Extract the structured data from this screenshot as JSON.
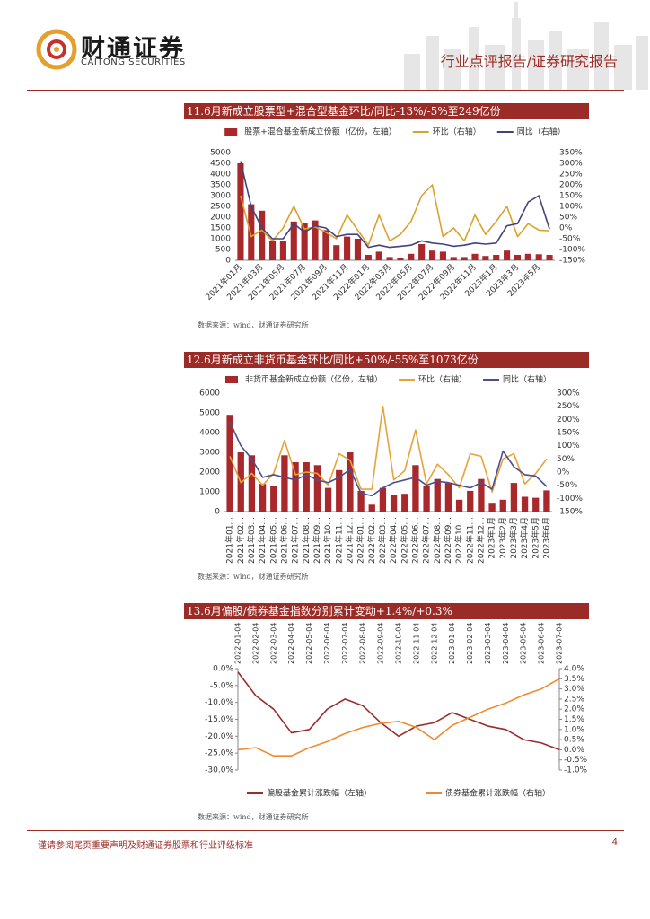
{
  "header": {
    "company": "财通证券",
    "company_en": "CAITONG SECURITIES",
    "report_type": "行业点评报告/证券研究报告"
  },
  "chart_data": [
    {
      "type": "combo",
      "title": "11.6月新成立股票型+混合型基金环比/同比-13%/-5%至249亿份",
      "source": "数据来源：wind，财通证券研究所",
      "legend": "top",
      "categories": [
        "2021年01月",
        null,
        "2021年03月",
        null,
        "2021年05月",
        null,
        "2021年07月",
        null,
        "2021年09月",
        null,
        "2021年11月",
        null,
        "2022年01月",
        null,
        "2022年03月",
        null,
        "2022年05月",
        null,
        "2022年07月",
        null,
        "2022年09月",
        null,
        "2022年11月",
        null,
        "2023年1月",
        null,
        "2023年3月",
        null,
        "2023年5月",
        null
      ],
      "series": [
        {
          "name": "股票+混合基金新成立份额（亿份，左轴）",
          "color": "#a8282b",
          "values": [
            4500,
            2600,
            2300,
            900,
            900,
            1800,
            1750,
            1850,
            1400,
            700,
            1100,
            1000,
            250,
            400,
            150,
            100,
            300,
            750,
            450,
            400,
            150,
            150,
            300,
            200,
            250,
            450,
            250,
            300,
            280,
            249
          ]
        },
        {
          "name": "环比（右轴）",
          "color": "#d9a230",
          "axis": "y2",
          "values": [
            150,
            -40,
            -10,
            -60,
            0,
            100,
            -5,
            5,
            -20,
            -50,
            60,
            -10,
            -80,
            60,
            -60,
            -30,
            30,
            150,
            200,
            -40,
            0,
            -60,
            60,
            -30,
            30,
            100,
            -40,
            20,
            -10,
            -13
          ]
        },
        {
          "name": "同比（右轴）",
          "color": "#3f437e",
          "axis": "y2",
          "values": [
            310,
            100,
            0,
            -50,
            -50,
            20,
            -20,
            10,
            0,
            -40,
            -30,
            -30,
            -90,
            -80,
            -90,
            -85,
            -80,
            -60,
            -70,
            -75,
            -85,
            -80,
            -70,
            -75,
            -70,
            10,
            20,
            120,
            150,
            -5
          ]
        }
      ],
      "ylim": [
        0,
        5000
      ],
      "yticks": [
        0,
        500,
        1000,
        1500,
        2000,
        2500,
        3000,
        3500,
        4000,
        4500,
        5000
      ],
      "y2lim": [
        -150,
        350
      ],
      "y2ticks": [
        {
          "value": -150,
          "label": "-150%"
        },
        {
          "value": -100,
          "label": "-100%"
        },
        {
          "value": -50,
          "label": "-50%"
        },
        {
          "value": 0,
          "label": "0%"
        },
        {
          "value": 50,
          "label": "50%"
        },
        {
          "value": 100,
          "label": "100%"
        },
        {
          "value": 150,
          "label": "150%"
        },
        {
          "value": 200,
          "label": "200%"
        },
        {
          "value": 250,
          "label": "250%"
        },
        {
          "value": 300,
          "label": "300%"
        },
        {
          "value": 350,
          "label": "350%"
        }
      ]
    },
    {
      "type": "combo",
      "title": "12.6月新成立非货币基金环比/同比+50%/-55%至1073亿份",
      "source": "数据来源：wind，财通证券研究所",
      "legend": "top",
      "categories": [
        "2021年01...",
        "2021年02...",
        "2021年03...",
        "2021年04...",
        "2021年05...",
        "2021年06...",
        "2021年07...",
        "2021年08...",
        "2021年09...",
        "2021年10...",
        "2021年11...",
        "2021年12...",
        "2022年01...",
        "2022年02...",
        "2022年03...",
        "2022年04...",
        "2022年05...",
        "2022年06...",
        "2022年07...",
        "2022年08...",
        "2022年09...",
        "2022年10...",
        "2022年11...",
        "2022年12...",
        "2023年1月",
        "2023年2月",
        "2023年3月",
        "2023年4月",
        "2023年5月",
        "2023年6月"
      ],
      "series": [
        {
          "name": "非货币基金新成立份额（亿份，左轴）",
          "color": "#a8282b",
          "values": [
            4900,
            3000,
            2850,
            1400,
            1300,
            2850,
            2500,
            2500,
            2350,
            1200,
            2100,
            3000,
            1050,
            350,
            1200,
            850,
            900,
            2350,
            1300,
            1650,
            1450,
            600,
            1050,
            1650,
            400,
            600,
            1450,
            750,
            700,
            1073
          ]
        },
        {
          "name": "环比（右轴）",
          "color": "#e8a23a",
          "axis": "y2",
          "values": [
            60,
            -40,
            -5,
            -50,
            -5,
            120,
            -10,
            0,
            -5,
            -50,
            70,
            45,
            -65,
            -65,
            250,
            -30,
            5,
            160,
            -45,
            30,
            -10,
            -60,
            70,
            60,
            -75,
            50,
            70,
            -45,
            -5,
            50
          ]
        },
        {
          "name": "同比（右轴）",
          "color": "#4b4f8f",
          "axis": "y2",
          "values": [
            190,
            100,
            50,
            -20,
            -10,
            -20,
            -30,
            -10,
            -30,
            -40,
            -20,
            10,
            -80,
            -90,
            -60,
            -40,
            -30,
            -20,
            -50,
            -35,
            -40,
            -50,
            -60,
            -40,
            -65,
            80,
            20,
            -10,
            -15,
            -55
          ]
        }
      ],
      "ylim": [
        0,
        6000
      ],
      "yticks": [
        0,
        1000,
        2000,
        3000,
        4000,
        5000,
        6000
      ],
      "y2lim": [
        -150,
        300
      ],
      "y2ticks": [
        {
          "value": -150,
          "label": "-150%"
        },
        {
          "value": -100,
          "label": "-100%"
        },
        {
          "value": -50,
          "label": "-50%"
        },
        {
          "value": 0,
          "label": "0%"
        },
        {
          "value": 50,
          "label": "50%"
        },
        {
          "value": 100,
          "label": "100%"
        },
        {
          "value": 150,
          "label": "150%"
        },
        {
          "value": 200,
          "label": "200%"
        },
        {
          "value": 250,
          "label": "250%"
        },
        {
          "value": 300,
          "label": "300%"
        }
      ]
    },
    {
      "type": "line",
      "title": "13.6月偏股/债券基金指数分别累计变动+1.4%/+0.3%",
      "source": "数据来源：wind，财通证券研究所",
      "legend": "bottom",
      "categories": [
        "2022-01-04",
        "2022-02-04",
        "2022-03-04",
        "2022-04-04",
        "2022-05-04",
        "2022-06-04",
        "2022-07-04",
        "2022-08-04",
        "2022-09-04",
        "2022-10-04",
        "2022-11-04",
        "2022-12-04",
        "2023-01-04",
        "2023-02-04",
        "2023-03-04",
        "2023-04-04",
        "2023-05-04",
        "2023-06-04",
        "2023-07-04"
      ],
      "series": [
        {
          "name": "偏股基金累计涨跌幅（左轴）",
          "color": "#9b2c2c",
          "values": [
            -1,
            -8,
            -12,
            -19,
            -18,
            -12,
            -9,
            -11,
            -16,
            -20,
            -17,
            -16,
            -13,
            -15,
            -17,
            -18,
            -21,
            -22,
            -24
          ]
        },
        {
          "name": "债券基金累计涨跌幅（右轴）",
          "color": "#f08a30",
          "axis": "y2",
          "values": [
            0,
            0.1,
            -0.3,
            -0.3,
            0.1,
            0.4,
            0.8,
            1.1,
            1.3,
            1.4,
            1.1,
            0.5,
            1.2,
            1.6,
            2.0,
            2.3,
            2.7,
            3.0,
            3.5
          ]
        }
      ],
      "ylim": [
        -30,
        0
      ],
      "yticks": [
        {
          "value": 0,
          "label": "0.0%"
        },
        {
          "value": -5,
          "label": "-5.0%"
        },
        {
          "value": -10,
          "label": "-10.0%"
        },
        {
          "value": -15,
          "label": "-15.0%"
        },
        {
          "value": -20,
          "label": "-20.0%"
        },
        {
          "value": -25,
          "label": "-25.0%"
        },
        {
          "value": -30,
          "label": "-30.0%"
        }
      ],
      "y2lim": [
        -1,
        4
      ],
      "y2ticks": [
        {
          "value": 4,
          "label": "4.0%"
        },
        {
          "value": 3.5,
          "label": "3.5%"
        },
        {
          "value": 3,
          "label": "3.0%"
        },
        {
          "value": 2.5,
          "label": "2.5%"
        },
        {
          "value": 2,
          "label": "2.0%"
        },
        {
          "value": 1.5,
          "label": "1.5%"
        },
        {
          "value": 1,
          "label": "1.0%"
        },
        {
          "value": 0.5,
          "label": "0.5%"
        },
        {
          "value": 0,
          "label": "0.0%"
        },
        {
          "value": -0.5,
          "label": "-0.5%"
        },
        {
          "value": -1,
          "label": "-1.0%"
        }
      ]
    }
  ],
  "footer": {
    "disclaimer": "谨请参阅尾页重要声明及财通证券股票和行业评级标准",
    "page": 4
  }
}
